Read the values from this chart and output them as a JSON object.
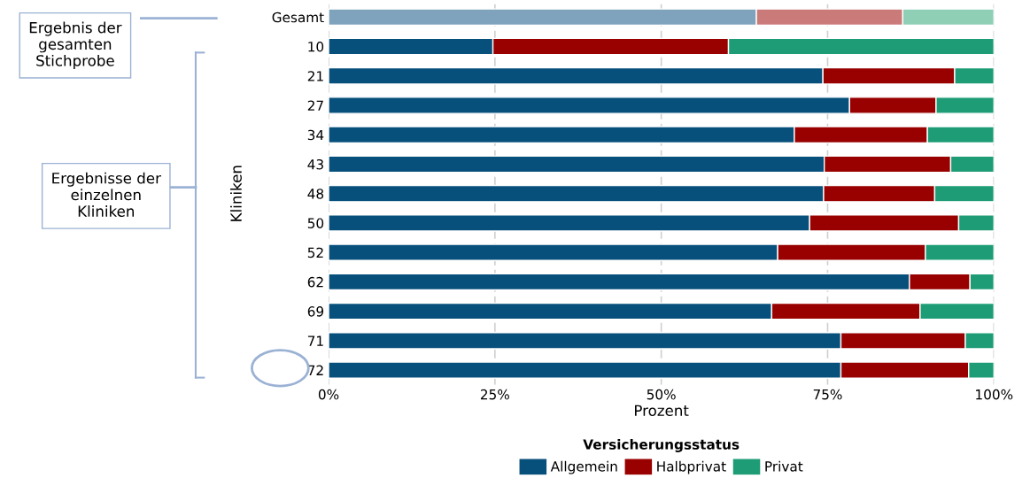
{
  "chart_data": {
    "type": "bar",
    "orientation": "horizontal",
    "stacked": true,
    "categories": [
      "Gesamt",
      "10",
      "21",
      "27",
      "34",
      "43",
      "48",
      "50",
      "52",
      "62",
      "69",
      "71",
      "72"
    ],
    "series": [
      {
        "name": "Allgemein",
        "color": "#08507c",
        "colors": [
          "#7fa3bc",
          "#08507c",
          "#08507c",
          "#08507c",
          "#08507c",
          "#08507c",
          "#08507c",
          "#08507c",
          "#08507c",
          "#08507c",
          "#08507c",
          "#08507c",
          "#08507c"
        ],
        "values": [
          64.3,
          24.7,
          74.3,
          78.3,
          70.0,
          74.5,
          74.4,
          72.3,
          67.5,
          87.3,
          66.6,
          77.0,
          77.0
        ]
      },
      {
        "name": "Halbprivat",
        "color": "#990000",
        "colors": [
          "#cb7a7a",
          "#990000",
          "#990000",
          "#990000",
          "#990000",
          "#990000",
          "#990000",
          "#990000",
          "#990000",
          "#990000",
          "#990000",
          "#990000",
          "#990000"
        ],
        "values": [
          22.0,
          35.4,
          19.8,
          13.0,
          20.0,
          19.0,
          16.7,
          22.4,
          22.2,
          9.1,
          22.3,
          18.7,
          19.2
        ]
      },
      {
        "name": "Privat",
        "color": "#1e9c76",
        "colors": [
          "#8fcfb6",
          "#1e9c76",
          "#1e9c76",
          "#1e9c76",
          "#1e9c76",
          "#1e9c76",
          "#1e9c76",
          "#1e9c76",
          "#1e9c76",
          "#1e9c76",
          "#1e9c76",
          "#1e9c76",
          "#1e9c76"
        ],
        "values": [
          13.7,
          39.9,
          5.9,
          8.7,
          10.0,
          6.5,
          8.9,
          5.3,
          10.3,
          3.6,
          11.1,
          4.3,
          3.8
        ]
      }
    ],
    "xlim": [
      0,
      100
    ],
    "xticks": [
      {
        "value": 0,
        "label": "0%"
      },
      {
        "value": 25,
        "label": "25%"
      },
      {
        "value": 50,
        "label": "50%"
      },
      {
        "value": 75,
        "label": "75%"
      },
      {
        "value": 100,
        "label": "100%"
      }
    ],
    "xlabel": "Prozent",
    "ylabel": "Kliniken",
    "legend_title": "Versicherungsstatus",
    "legend": "bottom",
    "grid": true,
    "annotations": [
      "Ergebnis der gesamten Stichprobe",
      "Ergebnisse der einzelnen Kliniken"
    ]
  }
}
